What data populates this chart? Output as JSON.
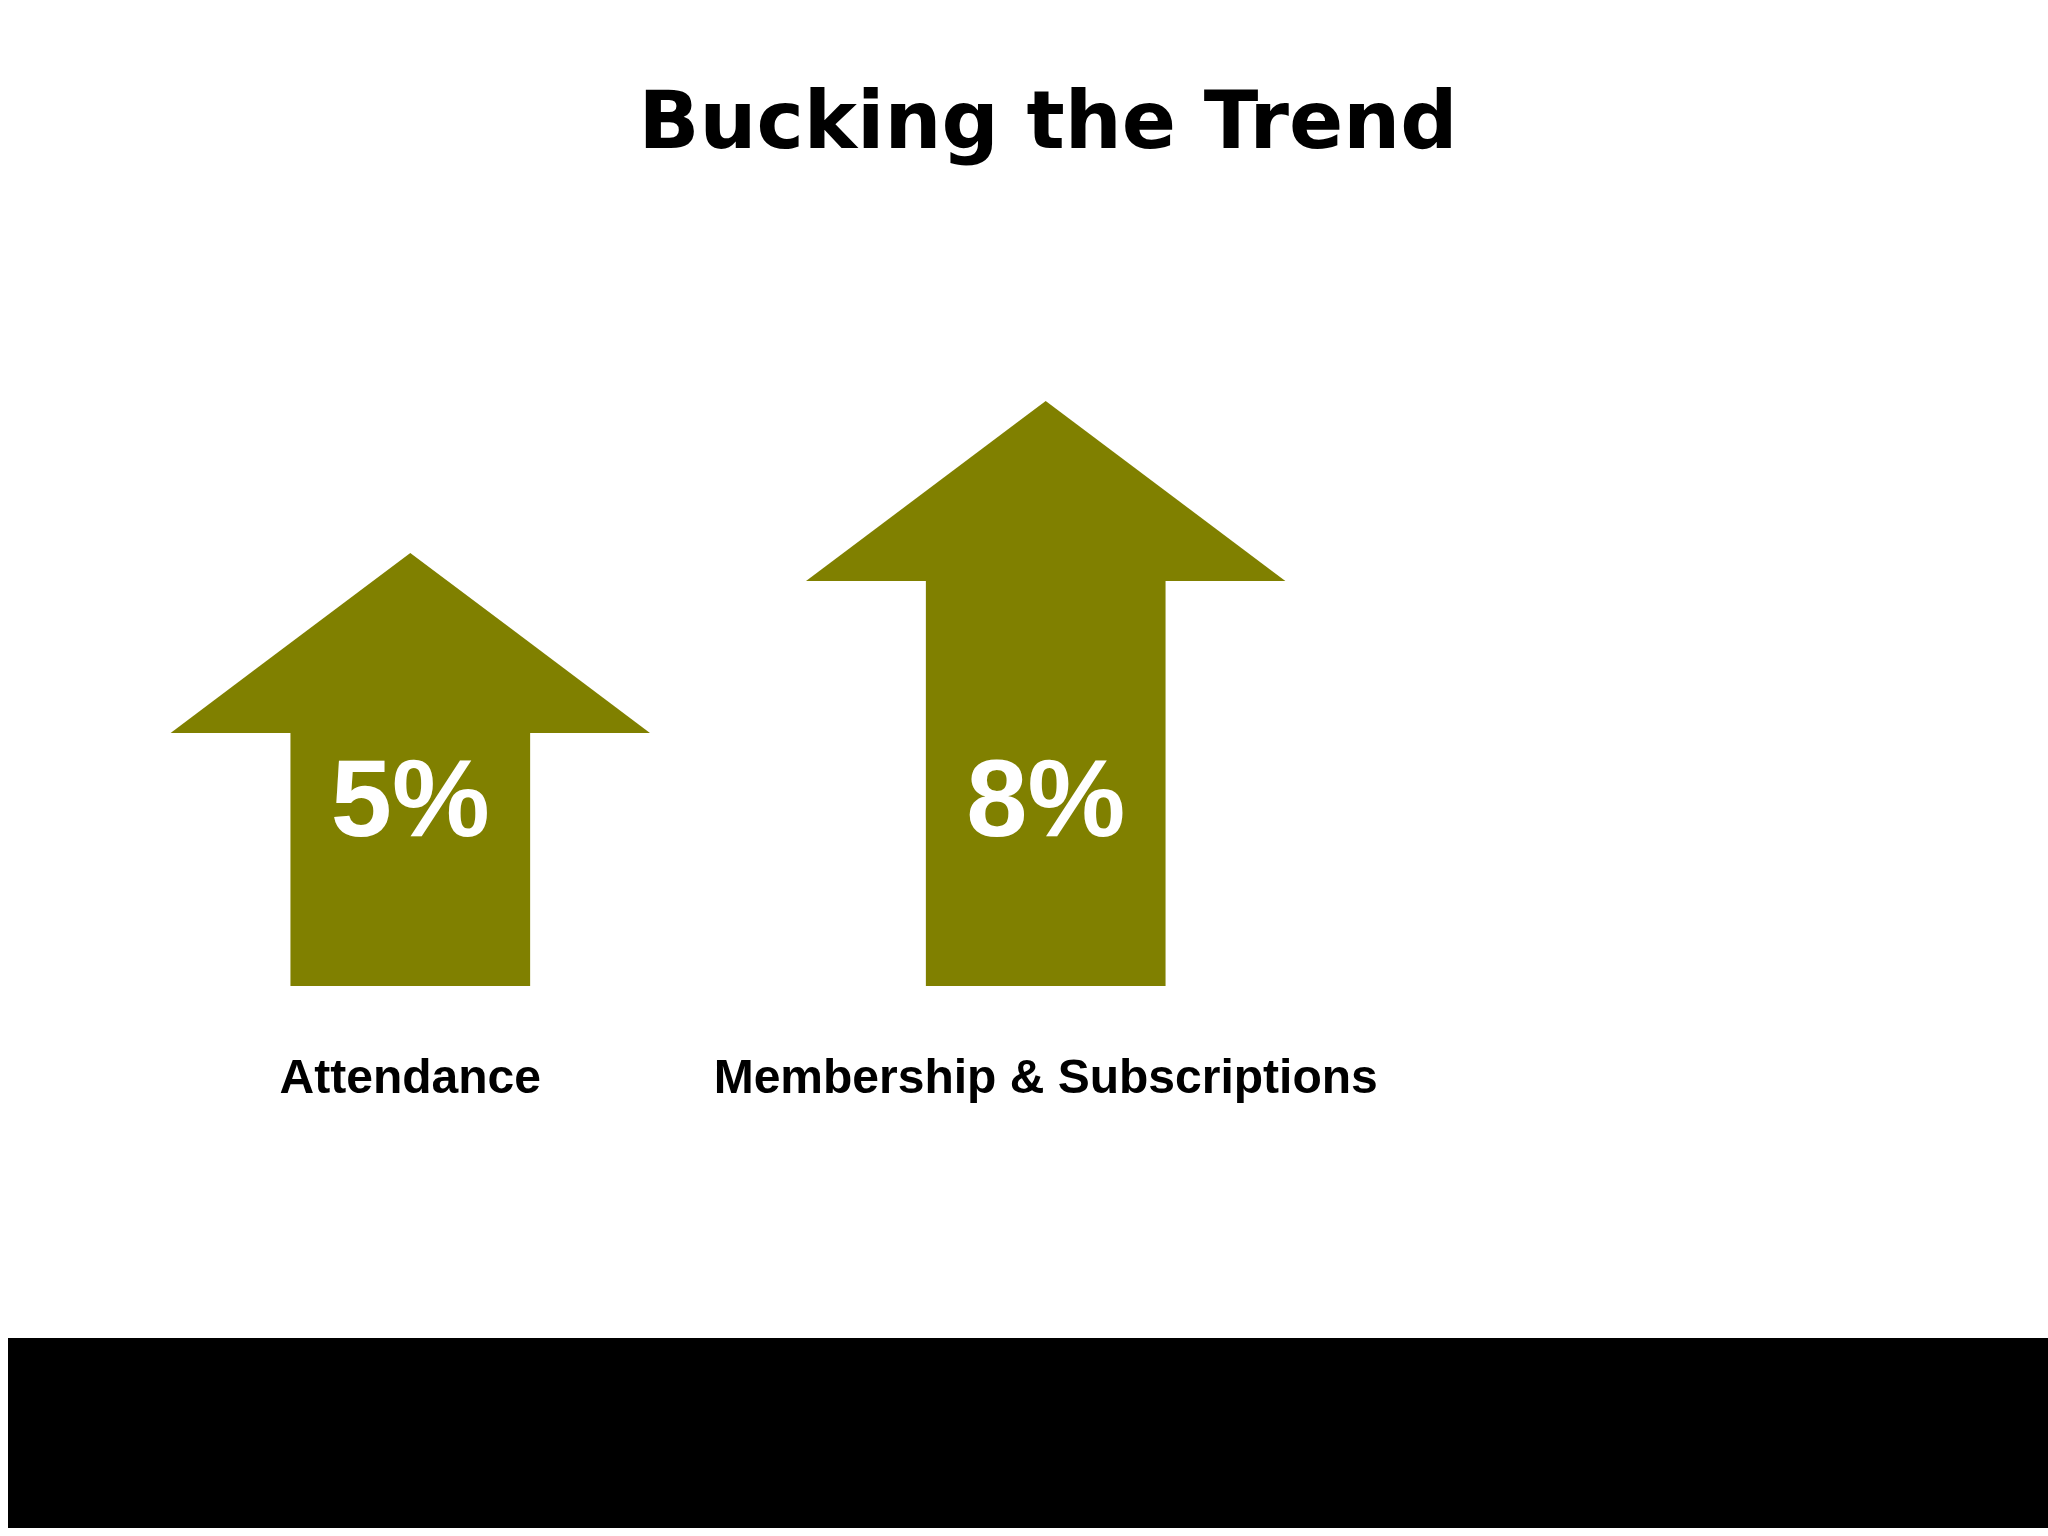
{
  "chart_data": {
    "type": "bar",
    "title": "Bucking the Trend",
    "categories": [
      "Attendance",
      "Membership & Subscriptions"
    ],
    "values": [
      5,
      8
    ],
    "value_labels": [
      "5%",
      "8%"
    ],
    "color": "#808000"
  }
}
